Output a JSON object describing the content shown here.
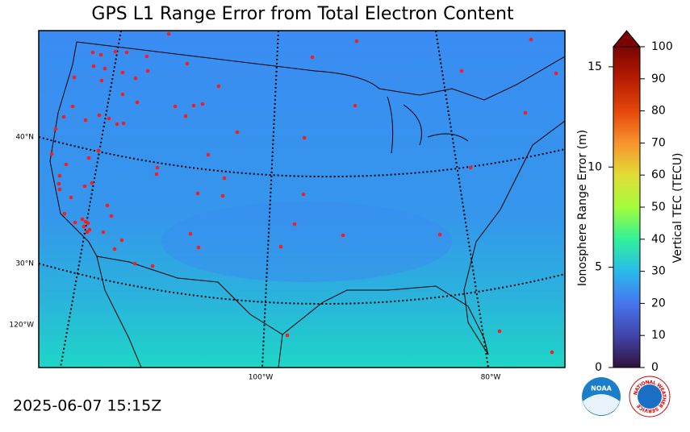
{
  "title": "GPS L1 Range Error from Total Electron Content",
  "timestamp": "2025-06-07 15:15Z",
  "map": {
    "graticule_labels": [
      "40°N",
      "30°N",
      "120°W",
      "100°W",
      "80°W"
    ]
  },
  "colorbar": {
    "tec_label": "Vertical TEC (TECU)",
    "range_label": "Ionosphere Range Error (m)",
    "tec_lim": [
      0,
      100
    ],
    "tec_ticks": [
      0,
      10,
      20,
      30,
      40,
      50,
      60,
      70,
      80,
      90,
      100
    ],
    "range_lim": [
      0,
      16
    ],
    "range_ticks": [
      0,
      5,
      10,
      15
    ]
  },
  "logos": {
    "noaa": "NOAA",
    "nws": "NATIONAL WEATHER SERVICE"
  }
}
